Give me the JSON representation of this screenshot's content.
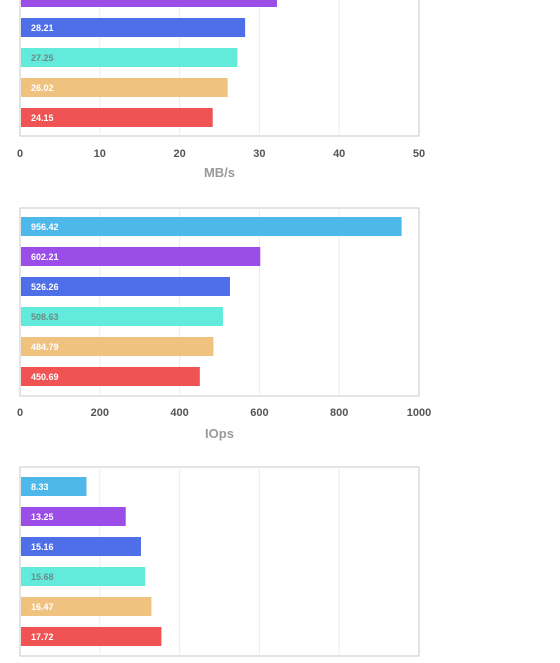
{
  "chart_data": [
    {
      "type": "bar",
      "orientation": "horizontal",
      "xlabel": "MB/s",
      "xlim": [
        0,
        50
      ],
      "xticks": [
        "0",
        "10",
        "20",
        "30",
        "40",
        "50"
      ],
      "grid": true,
      "bars": [
        {
          "value": 32.2,
          "label": "",
          "color": "#9b4de8",
          "label_color": "#ffffff"
        },
        {
          "value": 28.21,
          "label": "28.21",
          "color": "#4f6fe9",
          "label_color": "#ffffff"
        },
        {
          "value": 27.25,
          "label": "27.25",
          "color": "#62eadb",
          "label_color": "#6a8c88"
        },
        {
          "value": 26.02,
          "label": "26.02",
          "color": "#efc27f",
          "label_color": "#ffffff"
        },
        {
          "value": 24.15,
          "label": "24.15",
          "color": "#ef5353",
          "label_color": "#ffffff"
        }
      ]
    },
    {
      "type": "bar",
      "orientation": "horizontal",
      "xlabel": "IOps",
      "xlim": [
        0,
        1000
      ],
      "xticks": [
        "0",
        "200",
        "400",
        "600",
        "800",
        "1000"
      ],
      "grid": true,
      "bars": [
        {
          "value": 956.42,
          "label": "956.42",
          "color": "#4fb8ea",
          "label_color": "#ffffff"
        },
        {
          "value": 602.21,
          "label": "602.21",
          "color": "#9b4de8",
          "label_color": "#ffffff"
        },
        {
          "value": 526.26,
          "label": "526.26",
          "color": "#4f6fe9",
          "label_color": "#ffffff"
        },
        {
          "value": 508.63,
          "label": "508.63",
          "color": "#62eadb",
          "label_color": "#6a8c88"
        },
        {
          "value": 484.79,
          "label": "484.79",
          "color": "#efc27f",
          "label_color": "#ffffff"
        },
        {
          "value": 450.69,
          "label": "450.69",
          "color": "#ef5353",
          "label_color": "#ffffff"
        }
      ]
    },
    {
      "type": "bar",
      "orientation": "horizontal",
      "xlabel": "",
      "xlim": [
        0,
        50
      ],
      "xticks": [],
      "grid": true,
      "bars": [
        {
          "value": 8.33,
          "label": "8.33",
          "color": "#4fb8ea",
          "label_color": "#ffffff"
        },
        {
          "value": 13.25,
          "label": "13.25",
          "color": "#9b4de8",
          "label_color": "#ffffff"
        },
        {
          "value": 15.16,
          "label": "15.16",
          "color": "#4f6fe9",
          "label_color": "#ffffff"
        },
        {
          "value": 15.68,
          "label": "15.68",
          "color": "#62eadb",
          "label_color": "#6a8c88"
        },
        {
          "value": 16.47,
          "label": "16.47",
          "color": "#efc27f",
          "label_color": "#ffffff"
        },
        {
          "value": 17.72,
          "label": "17.72",
          "color": "#ef5353",
          "label_color": "#ffffff"
        }
      ]
    }
  ]
}
